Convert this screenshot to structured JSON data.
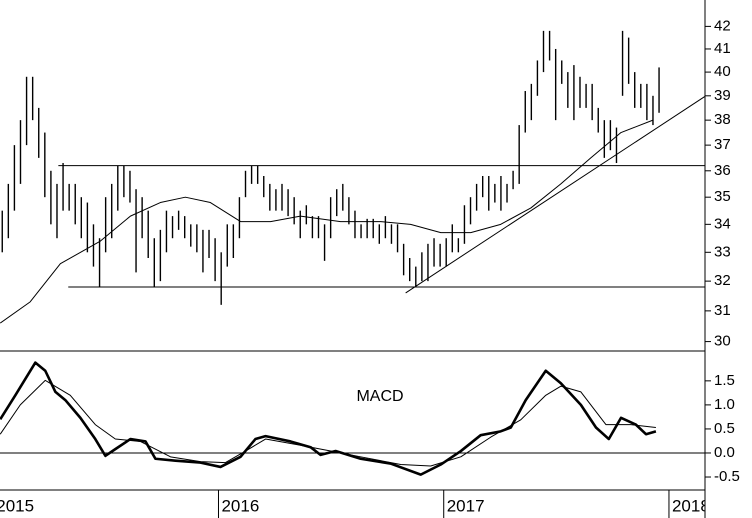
{
  "chart_data": [
    {
      "type": "hilo",
      "log_scale": true,
      "color": "#000000",
      "xlim": [
        2015.03,
        2018.16
      ],
      "ylim": [
        29.7,
        43.2
      ],
      "yticks": [
        30,
        31,
        32,
        33,
        34,
        35,
        36,
        37,
        38,
        39,
        40,
        41,
        42
      ],
      "x": [
        2015.04,
        2015.067,
        2015.094,
        2015.121,
        2015.148,
        2015.175,
        2015.202,
        2015.229,
        2015.256,
        2015.283,
        2015.31,
        2015.337,
        2015.364,
        2015.391,
        2015.418,
        2015.445,
        2015.472,
        2015.499,
        2015.526,
        2015.553,
        2015.58,
        2015.607,
        2015.634,
        2015.661,
        2015.688,
        2015.715,
        2015.742,
        2015.769,
        2015.796,
        2015.823,
        2015.85,
        2015.877,
        2015.904,
        2015.931,
        2015.958,
        2015.985,
        2016.012,
        2016.039,
        2016.066,
        2016.093,
        2016.12,
        2016.147,
        2016.174,
        2016.201,
        2016.228,
        2016.255,
        2016.282,
        2016.309,
        2016.336,
        2016.363,
        2016.39,
        2016.417,
        2016.444,
        2016.471,
        2016.498,
        2016.525,
        2016.552,
        2016.579,
        2016.606,
        2016.633,
        2016.66,
        2016.687,
        2016.714,
        2016.741,
        2016.768,
        2016.795,
        2016.822,
        2016.849,
        2016.876,
        2016.903,
        2016.93,
        2016.957,
        2016.984,
        2017.011,
        2017.038,
        2017.065,
        2017.092,
        2017.119,
        2017.146,
        2017.173,
        2017.2,
        2017.227,
        2017.254,
        2017.281,
        2017.308,
        2017.335,
        2017.362,
        2017.389,
        2017.416,
        2017.443,
        2017.47,
        2017.497,
        2017.524,
        2017.551,
        2017.578,
        2017.605,
        2017.632,
        2017.659,
        2017.686,
        2017.713,
        2017.74,
        2017.767,
        2017.794,
        2017.821,
        2017.848,
        2017.875,
        2017.902,
        2017.929,
        2017.956
      ],
      "high": [
        34.5,
        35.5,
        37,
        38,
        39.8,
        39.8,
        38.5,
        37.5,
        36,
        35.5,
        36.3,
        35.5,
        35.5,
        35,
        34.8,
        34,
        33.5,
        35,
        35.5,
        36.2,
        36.2,
        36,
        35.3,
        35,
        34.5,
        33.5,
        33.8,
        34.5,
        34.3,
        34.5,
        34.3,
        34,
        34,
        33.8,
        33.8,
        33.5,
        33,
        34,
        34,
        35,
        36,
        36.2,
        36.2,
        35.8,
        35.5,
        35.3,
        35.5,
        35.3,
        35,
        34.5,
        34.7,
        34.3,
        34.3,
        34,
        35,
        35.3,
        35.5,
        35,
        34.5,
        34,
        34.2,
        34.2,
        34,
        34.3,
        34,
        34,
        33.3,
        32.8,
        32.5,
        33,
        33.3,
        33.5,
        33.3,
        33.5,
        34,
        33.5,
        34.7,
        35,
        35.5,
        35.8,
        35.8,
        35.5,
        35.8,
        35.5,
        36,
        37.8,
        39.2,
        39.5,
        40.5,
        41.8,
        41.8,
        41,
        40.5,
        40,
        40.3,
        39.8,
        39.5,
        39.5,
        38.5,
        38,
        38,
        37.7,
        41.8,
        41.5,
        40,
        39.5,
        39.5,
        39,
        40.2
      ],
      "low": [
        33,
        33.5,
        34.5,
        35.5,
        37,
        38,
        36.5,
        35,
        34,
        33.5,
        34.5,
        34.5,
        34,
        33.5,
        33,
        32.5,
        31.8,
        33,
        33.5,
        34.5,
        35,
        34.8,
        32.3,
        33.5,
        32.8,
        31.8,
        32,
        33,
        33.5,
        33.8,
        33.5,
        33.2,
        33,
        32.3,
        32.8,
        32,
        31.2,
        32.5,
        32.8,
        33.5,
        35,
        35.5,
        35.5,
        35,
        34.5,
        34.5,
        34.5,
        34.3,
        34,
        33.5,
        34,
        33.5,
        33.5,
        32.7,
        33.5,
        34.3,
        34.5,
        34,
        33.5,
        33.5,
        33.5,
        33.5,
        33.3,
        33.5,
        33.3,
        33,
        32.2,
        32,
        31.8,
        32,
        32,
        32.5,
        32.5,
        32.5,
        33,
        33,
        33.3,
        34,
        34.5,
        35,
        34.5,
        34.8,
        34.5,
        34.8,
        35.3,
        35.5,
        37.5,
        38,
        39,
        40,
        40.5,
        38,
        39.5,
        38.5,
        38,
        38.5,
        38.5,
        38,
        37.5,
        36.5,
        36.8,
        36.3,
        39,
        39.5,
        38.5,
        38.5,
        38,
        37.8,
        38.3
      ],
      "lines": [
        {
          "color": "#000000",
          "width": 1,
          "x": [
            2015.031,
            2015.164,
            2015.298,
            2015.476,
            2015.609,
            2015.742,
            2015.853,
            2015.964,
            2016.098,
            2016.231,
            2016.364,
            2016.542,
            2016.72,
            2016.853,
            2016.987,
            2017.12,
            2017.253,
            2017.387,
            2017.52,
            2017.653,
            2017.787,
            2017.929
          ],
          "values": [
            30.6,
            31.3,
            32.6,
            33.4,
            34.3,
            34.8,
            35.0,
            34.8,
            34.1,
            34.1,
            34.3,
            34.1,
            34.1,
            34.0,
            33.7,
            33.7,
            34.0,
            34.6,
            35.5,
            36.5,
            37.5,
            38.0
          ]
        },
        {
          "color": "#000000",
          "width": 1,
          "x": [
            2015.289,
            2018.16
          ],
          "values": [
            36.2,
            36.2
          ]
        },
        {
          "color": "#000000",
          "width": 1,
          "x": [
            2015.333,
            2018.16
          ],
          "values": [
            31.8,
            31.8
          ]
        },
        {
          "color": "#000000",
          "width": 1,
          "x": [
            2016.831,
            2018.164
          ],
          "values": [
            31.6,
            39.0
          ]
        }
      ]
    },
    {
      "type": "line",
      "title": "MACD",
      "xlim": [
        2015.03,
        2018.16
      ],
      "ylim": [
        -0.77,
        2.1
      ],
      "yticks": [
        1.5,
        {
          "value": 1,
          "label": "1.0"
        },
        0.5,
        {
          "value": 0,
          "label": "0.0"
        },
        -0.5
      ],
      "hline": 0,
      "xticks": [
        2015,
        2016,
        2017,
        2018
      ],
      "series": [
        {
          "color": "#000000",
          "width": 2.6,
          "x": [
            2015.031,
            2015.098,
            2015.187,
            2015.231,
            2015.276,
            2015.32,
            2015.387,
            2015.453,
            2015.498,
            2015.542,
            2015.609,
            2015.676,
            2015.72,
            2015.809,
            2015.92,
            2016.009,
            2016.098,
            2016.164,
            2016.209,
            2016.32,
            2016.409,
            2016.453,
            2016.52,
            2016.631,
            2016.764,
            2016.898,
            2016.987,
            2017.076,
            2017.164,
            2017.253,
            2017.298,
            2017.364,
            2017.453,
            2017.52,
            2017.609,
            2017.676,
            2017.733,
            2017.787,
            2017.853,
            2017.898,
            2017.942
          ],
          "values": [
            0.7,
            1.2,
            1.88,
            1.71,
            1.27,
            1.1,
            0.73,
            0.29,
            -0.06,
            0.08,
            0.29,
            0.24,
            -0.12,
            -0.16,
            -0.2,
            -0.29,
            -0.08,
            0.29,
            0.35,
            0.24,
            0.12,
            -0.04,
            0.04,
            -0.12,
            -0.22,
            -0.45,
            -0.24,
            0.04,
            0.37,
            0.45,
            0.53,
            1.1,
            1.71,
            1.45,
            1.0,
            0.53,
            0.29,
            0.73,
            0.59,
            0.39,
            0.45
          ]
        },
        {
          "color": "#000000",
          "width": 1,
          "x": [
            2015.031,
            2015.12,
            2015.231,
            2015.342,
            2015.453,
            2015.542,
            2015.653,
            2015.787,
            2015.92,
            2016.031,
            2016.12,
            2016.209,
            2016.364,
            2016.498,
            2016.631,
            2016.809,
            2016.942,
            2017.076,
            2017.209,
            2017.342,
            2017.453,
            2017.52,
            2017.609,
            2017.72,
            2017.831,
            2017.942
          ],
          "values": [
            0.39,
            1.0,
            1.51,
            1.2,
            0.59,
            0.29,
            0.24,
            -0.08,
            -0.18,
            -0.2,
            0.04,
            0.29,
            0.16,
            0.04,
            -0.08,
            -0.24,
            -0.27,
            -0.08,
            0.33,
            0.69,
            1.2,
            1.39,
            1.27,
            0.59,
            0.59,
            0.53
          ]
        }
      ]
    }
  ]
}
